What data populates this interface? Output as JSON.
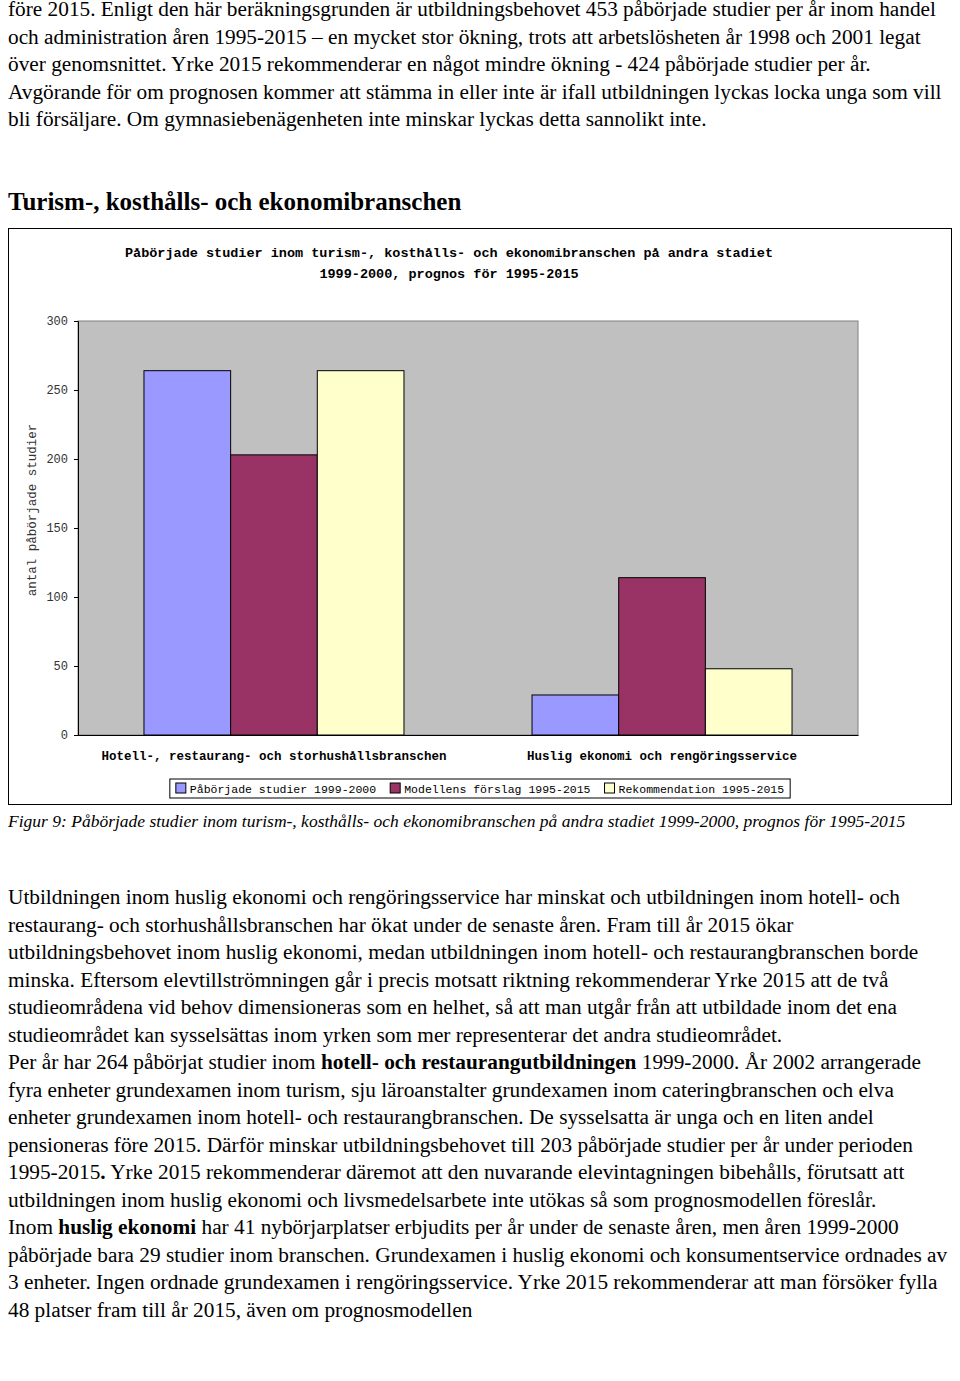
{
  "top_paragraphs": [
    [
      {
        "text": "före 2015. Enligt den här beräkningsgrunden är utbildningsbehovet 453 påbörjade studier per år inom handel och administration åren 1995-2015 – en mycket stor ökning, trots att arbetslösheten år 1998 och 2001 legat över genomsnittet. Yrke 2015 rekommenderar en något mindre ökning - 424 påbörjade studier per år. Avgörande för om prognosen kommer att stämma in eller inte är ifall utbildningen lyckas locka unga som vill bli försäljare. Om gymnasiebenägenheten inte minskar lyckas detta sannolikt inte.",
        "bold": false
      }
    ]
  ],
  "heading": "Turism-, kosthålls- och ekonomibranschen",
  "chart_data": {
    "type": "bar",
    "title": "Påbörjade studier inom turism-, kosthålls- och ekonomibranschen på andra stadiet 1999-2000, prognos för 1995-2015",
    "y_label": "antal påbörjade studier",
    "categories": [
      "Hotell-, restaurang- och storhushållsbranschen",
      "Huslig ekonomi och rengöringsservice"
    ],
    "series": [
      {
        "name": "Påbörjade studier 1999-2000",
        "color": "#9999ff",
        "values": [
          264,
          29
        ]
      },
      {
        "name": "Modellens förslag 1995-2015",
        "color": "#993366",
        "values": [
          203,
          114
        ]
      },
      {
        "name": "Rekommendation 1995-2015",
        "color": "#ffffcc",
        "values": [
          264,
          48
        ]
      }
    ],
    "ylim": [
      0,
      300
    ],
    "yticks": [
      0,
      50,
      100,
      150,
      200,
      250,
      300
    ],
    "grid": false,
    "legend": "bottom"
  },
  "caption": "Figur 9: Påbörjade studier inom turism-, kosthålls- och ekonomibranschen på andra stadiet 1999-2000, prognos för 1995-2015",
  "bottom_paragraphs": [
    [
      {
        "text": "Utbildningen inom huslig ekonomi och rengöringsservice har minskat och utbildningen inom hotell- och restaurang- och storhushållsbranschen har ökat under de senaste åren. Fram till år 2015 ökar utbildningsbehovet inom huslig ekonomi, medan utbildningen inom hotell- och restaurangbranschen borde minska. Eftersom elevtillströmningen går i precis motsatt riktning rekommenderar Yrke 2015 att de två studieområdena vid behov dimensioneras som en helhet, så att man utgår från att utbildade inom det ena studieområdet kan sysselsättas inom yrken som mer representerar det andra studieområdet.",
        "bold": false
      }
    ],
    [
      {
        "text": "Per år har 264 påbörjat studier inom ",
        "bold": false
      },
      {
        "text": "hotell- och restaurangutbildningen",
        "bold": true
      },
      {
        "text": " 1999-2000. År 2002 arrangerade fyra enheter grundexamen inom turism, sju läroanstalter grundexamen inom cateringbranschen och elva enheter grundexamen inom hotell- och restaurangbranschen. De sysselsatta är unga och en liten andel pensioneras före 2015. Därför minskar utbildningsbehovet till 203 påbörjade studier per år under perioden 1995-2015",
        "bold": false
      },
      {
        "text": ".",
        "bold": true
      },
      {
        "text": " Yrke 2015 rekommenderar däremot att den nuvarande elevintagningen bibehålls, förutsatt att utbildningen inom huslig ekonomi och livsmedelsarbete inte utökas så som prognosmodellen föreslår.",
        "bold": false
      }
    ],
    [
      {
        "text": "Inom ",
        "bold": false
      },
      {
        "text": "huslig ekonomi",
        "bold": true
      },
      {
        "text": " har 41 nybörjarplatser erbjudits per år under de senaste åren, men åren 1999-2000 påbörjade bara 29 studier inom branschen. Grundexamen i huslig ekonomi och konsumentservice ordnades av 3 enheter. Ingen ordnade grundexamen i rengöringsservice. Yrke 2015 rekommenderar att man försöker fylla 48 platser fram till år 2015, även om prognosmodellen",
        "bold": false
      }
    ]
  ]
}
